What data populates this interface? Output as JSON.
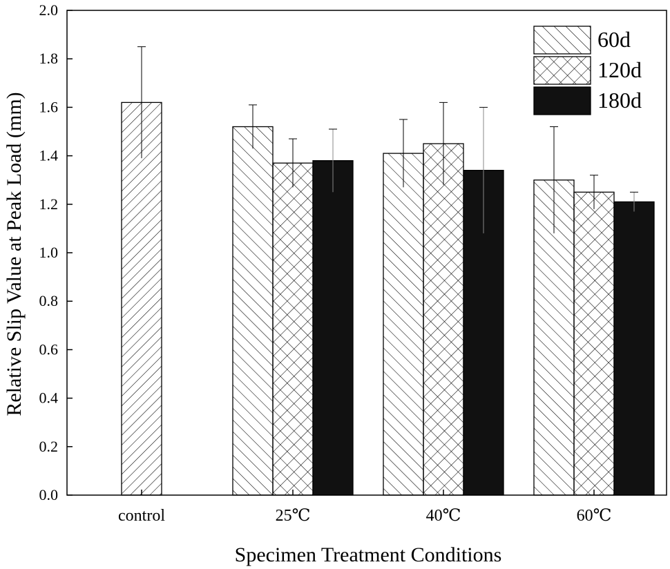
{
  "chart_data": {
    "type": "bar",
    "title": "",
    "xlabel": "Specimen Treatment Conditions",
    "ylabel": "Relative Slip Value at Peak Load (mm)",
    "ylim": [
      0,
      2.0
    ],
    "yticks": [
      "0.0",
      "0.2",
      "0.4",
      "0.6",
      "0.8",
      "1.0",
      "1.2",
      "1.4",
      "1.6",
      "1.8",
      "2.0"
    ],
    "categories": [
      "control",
      "25℃",
      "40℃",
      "60℃"
    ],
    "legend_position": "top-right",
    "series": [
      {
        "name": "control",
        "in_legend": false,
        "pattern": "forward-hatch",
        "values": [
          1.62,
          null,
          null,
          null
        ],
        "errors": [
          0.23,
          null,
          null,
          null
        ]
      },
      {
        "name": "60d",
        "in_legend": true,
        "pattern": "back-hatch",
        "values": [
          null,
          1.52,
          1.41,
          1.3
        ],
        "errors": [
          null,
          0.09,
          0.14,
          0.22
        ]
      },
      {
        "name": "120d",
        "in_legend": true,
        "pattern": "crosshatch",
        "values": [
          null,
          1.37,
          1.45,
          1.25
        ],
        "errors": [
          null,
          0.1,
          0.17,
          0.07
        ]
      },
      {
        "name": "180d",
        "in_legend": true,
        "pattern": "solid",
        "values": [
          null,
          1.38,
          1.34,
          1.21
        ],
        "errors": [
          null,
          0.13,
          0.26,
          0.04
        ]
      }
    ],
    "colors": {
      "bar_fill": "#ffffff",
      "stroke": "#000000",
      "solid": "#111111"
    }
  }
}
